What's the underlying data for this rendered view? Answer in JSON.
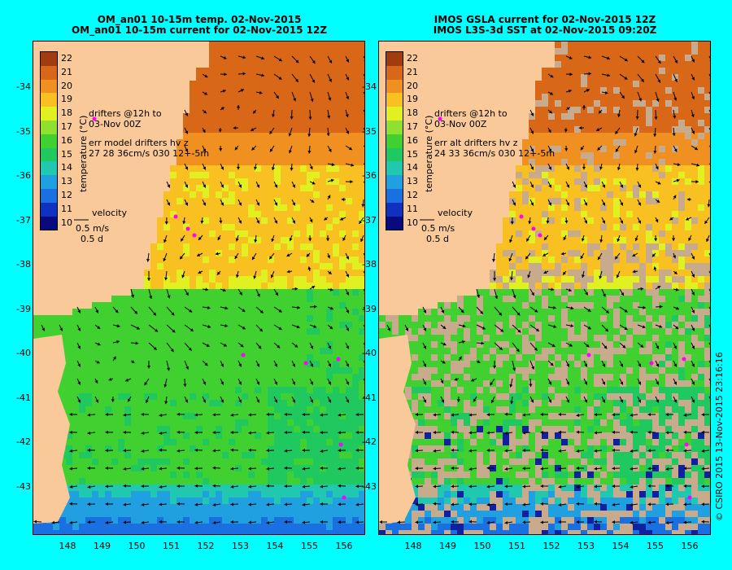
{
  "left": {
    "title1": "OM_an01 10-15m temp. 02-Nov-2015",
    "title2": "OM_an01 10-15m current for 02-Nov-2015 12Z",
    "drifters_label_1": "drifters @12h to",
    "drifters_label_2": "03-Nov 00Z",
    "err_line_1": "err model drifters hv z",
    "err_line_2": "27 28 36cm/s 030 12+-5m"
  },
  "right": {
    "title1": "IMOS GSLA current for 02-Nov-2015 12Z",
    "title2": "IMOS L3S-3d SST at 02-Nov-2015 09:20Z",
    "drifters_label_1": "drifters @12h to",
    "drifters_label_2": "03-Nov 00Z",
    "err_line_1": "err alt drifters hv z",
    "err_line_2": "24 33 36cm/s 030 12+-5m"
  },
  "velocity_legend": {
    "label": "velocity",
    "speed": "0.5 m/s",
    "time": "0.5 d"
  },
  "colorbar": {
    "title": "temperature (°C)",
    "ticks": [
      "22",
      "21",
      "20",
      "19",
      "18",
      "17",
      "16",
      "15",
      "14",
      "13",
      "12",
      "11",
      "10"
    ]
  },
  "axes": {
    "y_ticks": [
      "-34",
      "-35",
      "-36",
      "-37",
      "-38",
      "-39",
      "-40",
      "-41",
      "-42",
      "-43"
    ],
    "x_ticks": [
      "148",
      "149",
      "150",
      "151",
      "152",
      "153",
      "154",
      "155",
      "156"
    ]
  },
  "credit": "© CSIRO 2015   13-Nov-2015 23:16:16",
  "colors": {
    "background": "#00ffff",
    "land": "#f9c99a",
    "drifter": "#ff00ff"
  }
}
